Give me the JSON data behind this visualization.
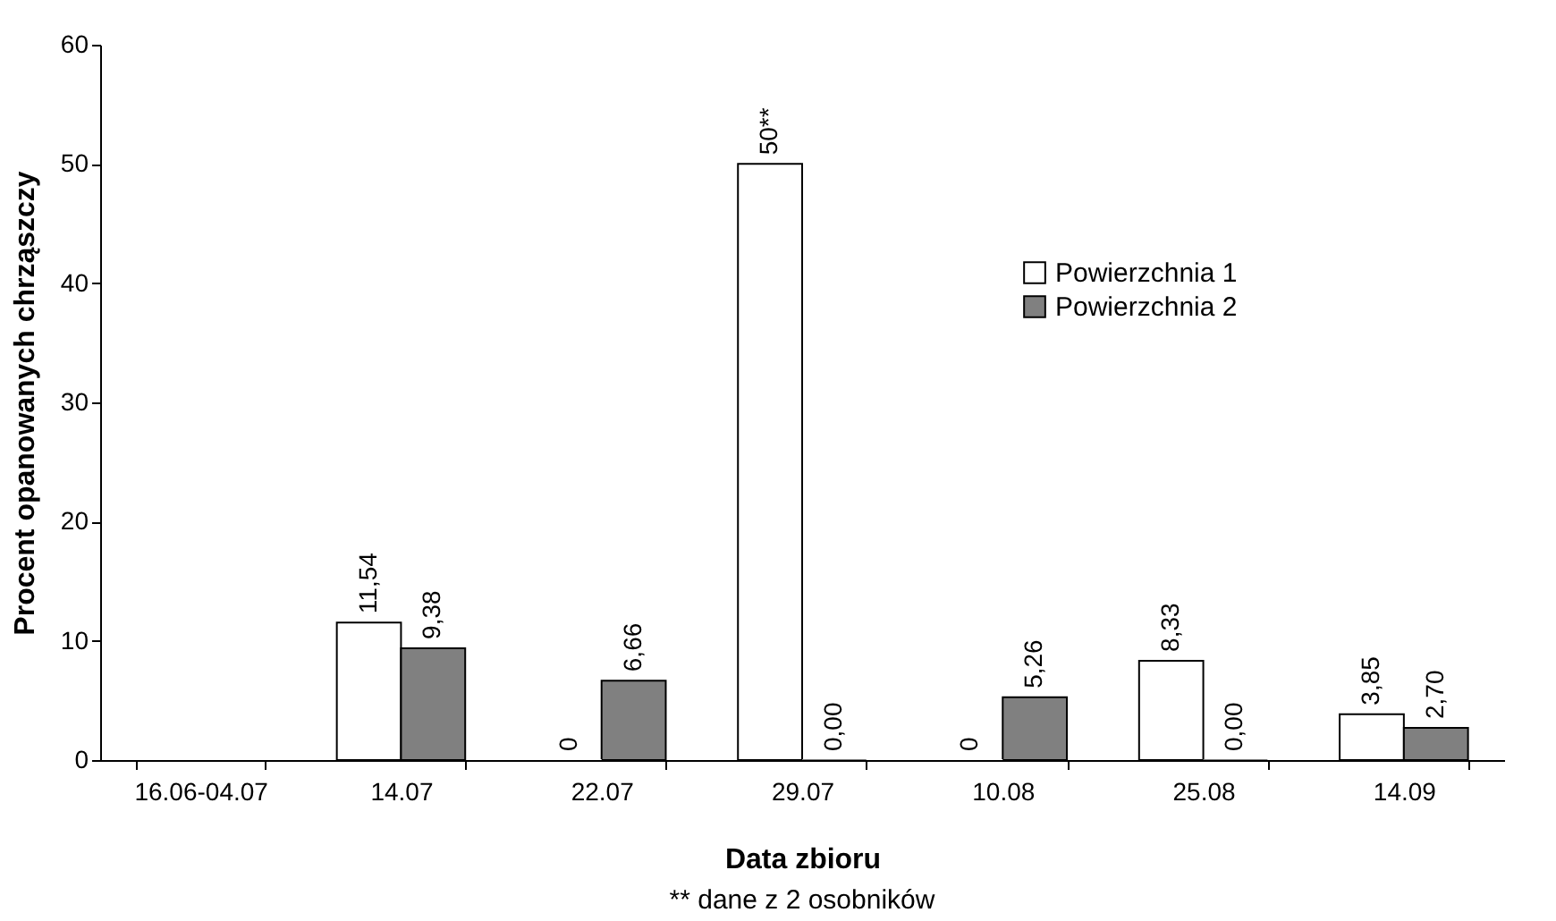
{
  "chart_data": {
    "type": "bar",
    "xlabel": "Data zbioru",
    "ylabel": "Procent opanowanych chrząszczy",
    "categories": [
      "16.06-04.07",
      "14.07",
      "22.07",
      "29.07",
      "10.08",
      "25.08",
      "14.09"
    ],
    "series": [
      {
        "name": "Powierzchnia 1",
        "color": "#ffffff",
        "values": [
          null,
          11.54,
          0,
          50,
          0,
          8.33,
          3.85
        ],
        "value_labels": [
          null,
          "11,54",
          "0",
          "50**",
          "0",
          "8,33",
          "3,85"
        ]
      },
      {
        "name": "Powierzchnia 2",
        "color": "#808080",
        "values": [
          null,
          9.38,
          6.66,
          0.0,
          5.26,
          0.0,
          2.7
        ],
        "value_labels": [
          null,
          "9,38",
          "6,66",
          "0,00",
          "5,26",
          "0,00",
          "2,70"
        ]
      }
    ],
    "ylim": [
      0,
      60
    ],
    "yticks": [
      0,
      10,
      20,
      30,
      40,
      50,
      60
    ],
    "grid": false,
    "legend": "right",
    "annotations": [
      "** dane z 2 osobników"
    ]
  }
}
